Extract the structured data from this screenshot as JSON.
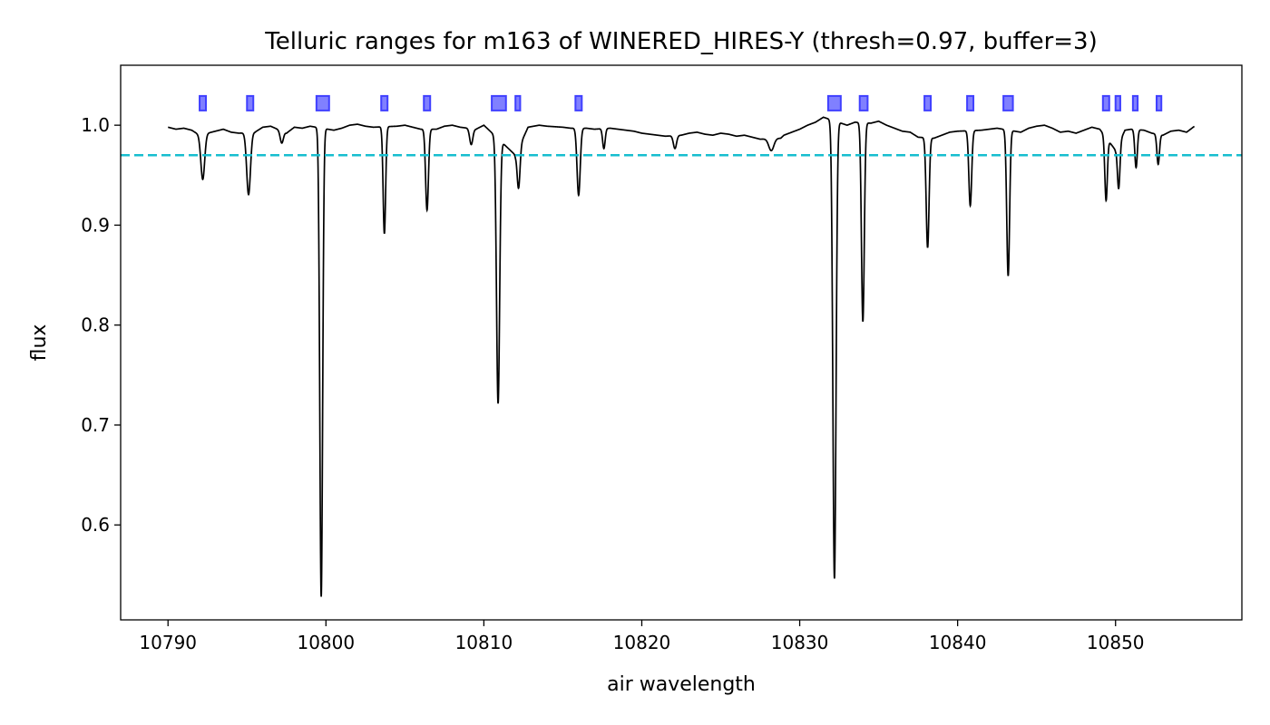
{
  "chart_data": {
    "type": "line",
    "title": "Telluric ranges for m163 of WINERED_HIRES-Y (thresh=0.97, buffer=3)",
    "xlabel": "air wavelength",
    "ylabel": "flux",
    "xlim": [
      10787,
      10858
    ],
    "ylim": [
      0.505,
      1.06
    ],
    "xticks": [
      10790,
      10800,
      10810,
      10820,
      10830,
      10840,
      10850
    ],
    "yticks": [
      0.6,
      0.7,
      0.8,
      0.9,
      1.0
    ],
    "ytick_labels": [
      "0.6",
      "0.7",
      "0.8",
      "0.9",
      "1.0"
    ],
    "grid": false,
    "threshold": 0.97,
    "continuum": [
      [
        10790.0,
        0.998
      ],
      [
        10790.5,
        0.996
      ],
      [
        10791.0,
        0.997
      ],
      [
        10791.5,
        0.995
      ],
      [
        10792.0,
        0.99
      ],
      [
        10793.0,
        0.994
      ],
      [
        10793.5,
        0.996
      ],
      [
        10794.0,
        0.993
      ],
      [
        10794.5,
        0.992
      ],
      [
        10795.5,
        0.993
      ],
      [
        10796.0,
        0.998
      ],
      [
        10796.5,
        0.999
      ],
      [
        10797.5,
        0.992
      ],
      [
        10798.0,
        0.998
      ],
      [
        10798.5,
        0.997
      ],
      [
        10799.0,
        0.999
      ],
      [
        10800.5,
        0.995
      ],
      [
        10801.0,
        0.997
      ],
      [
        10801.5,
        1.0
      ],
      [
        10802.0,
        1.001
      ],
      [
        10802.5,
        0.999
      ],
      [
        10803.0,
        0.998
      ],
      [
        10804.5,
        0.999
      ],
      [
        10805.0,
        1.0
      ],
      [
        10805.5,
        0.998
      ],
      [
        10806.0,
        0.996
      ],
      [
        10807.0,
        0.996
      ],
      [
        10807.5,
        0.999
      ],
      [
        10808.0,
        1.0
      ],
      [
        10808.5,
        0.998
      ],
      [
        10809.5,
        0.996
      ],
      [
        10810.0,
        1.0
      ],
      [
        10812.0,
        0.97
      ],
      [
        10812.8,
        0.998
      ],
      [
        10813.5,
        1.0
      ],
      [
        10814.0,
        0.999
      ],
      [
        10815.0,
        0.998
      ],
      [
        10815.5,
        0.997
      ],
      [
        10816.5,
        0.997
      ],
      [
        10817.0,
        0.996
      ],
      [
        10818.0,
        0.997
      ],
      [
        10818.5,
        0.996
      ],
      [
        10819.0,
        0.995
      ],
      [
        10819.5,
        0.994
      ],
      [
        10820.0,
        0.992
      ],
      [
        10821.0,
        0.99
      ],
      [
        10821.5,
        0.989
      ],
      [
        10822.5,
        0.99
      ],
      [
        10823.0,
        0.992
      ],
      [
        10823.5,
        0.993
      ],
      [
        10824.0,
        0.991
      ],
      [
        10824.5,
        0.99
      ],
      [
        10825.0,
        0.992
      ],
      [
        10825.5,
        0.991
      ],
      [
        10826.0,
        0.989
      ],
      [
        10826.5,
        0.99
      ],
      [
        10827.0,
        0.988
      ],
      [
        10827.5,
        0.986
      ],
      [
        10828.8,
        0.987
      ],
      [
        10829.0,
        0.99
      ],
      [
        10829.5,
        0.993
      ],
      [
        10830.0,
        0.996
      ],
      [
        10830.5,
        1.0
      ],
      [
        10831.0,
        1.003
      ],
      [
        10831.5,
        1.008
      ],
      [
        10833.0,
        1.0
      ],
      [
        10833.5,
        1.003
      ],
      [
        10834.5,
        1.002
      ],
      [
        10835.0,
        1.004
      ],
      [
        10835.5,
        1.0
      ],
      [
        10836.0,
        0.997
      ],
      [
        10836.5,
        0.994
      ],
      [
        10837.0,
        0.993
      ],
      [
        10837.5,
        0.988
      ],
      [
        10838.5,
        0.987
      ],
      [
        10839.0,
        0.99
      ],
      [
        10839.5,
        0.993
      ],
      [
        10840.0,
        0.994
      ],
      [
        10841.5,
        0.995
      ],
      [
        10842.0,
        0.996
      ],
      [
        10842.5,
        0.997
      ],
      [
        10844.0,
        0.993
      ],
      [
        10844.5,
        0.997
      ],
      [
        10845.0,
        0.999
      ],
      [
        10845.5,
        1.0
      ],
      [
        10846.0,
        0.997
      ],
      [
        10846.5,
        0.993
      ],
      [
        10847.0,
        0.994
      ],
      [
        10847.5,
        0.992
      ],
      [
        10848.0,
        0.995
      ],
      [
        10848.5,
        0.998
      ],
      [
        10849.0,
        0.996
      ],
      [
        10850.0,
        0.975
      ],
      [
        10850.6,
        0.995
      ],
      [
        10851.0,
        0.996
      ],
      [
        10851.8,
        0.995
      ],
      [
        10852.3,
        0.992
      ],
      [
        10853.0,
        0.99
      ],
      [
        10853.5,
        0.994
      ],
      [
        10854.0,
        0.995
      ],
      [
        10854.5,
        0.993
      ],
      [
        10855.0,
        0.999
      ]
    ],
    "absorption_lines": [
      {
        "center": 10792.2,
        "depth": 0.045,
        "width": 0.12
      },
      {
        "center": 10795.1,
        "depth": 0.062,
        "width": 0.12
      },
      {
        "center": 10797.2,
        "depth": 0.012,
        "width": 0.1
      },
      {
        "center": 10799.7,
        "depth": 0.469,
        "width": 0.09
      },
      {
        "center": 10803.7,
        "depth": 0.107,
        "width": 0.08
      },
      {
        "center": 10806.4,
        "depth": 0.081,
        "width": 0.09
      },
      {
        "center": 10809.2,
        "depth": 0.016,
        "width": 0.1
      },
      {
        "center": 10810.9,
        "depth": 0.265,
        "width": 0.1
      },
      {
        "center": 10812.2,
        "depth": 0.04,
        "width": 0.09
      },
      {
        "center": 10816.0,
        "depth": 0.067,
        "width": 0.1
      },
      {
        "center": 10817.6,
        "depth": 0.02,
        "width": 0.08
      },
      {
        "center": 10822.1,
        "depth": 0.013,
        "width": 0.1
      },
      {
        "center": 10828.2,
        "depth": 0.012,
        "width": 0.16
      },
      {
        "center": 10832.2,
        "depth": 0.458,
        "width": 0.1
      },
      {
        "center": 10834.0,
        "depth": 0.199,
        "width": 0.09
      },
      {
        "center": 10838.1,
        "depth": 0.11,
        "width": 0.09
      },
      {
        "center": 10840.8,
        "depth": 0.075,
        "width": 0.09
      },
      {
        "center": 10843.2,
        "depth": 0.146,
        "width": 0.09
      },
      {
        "center": 10849.4,
        "depth": 0.063,
        "width": 0.08
      },
      {
        "center": 10850.2,
        "depth": 0.045,
        "width": 0.08
      },
      {
        "center": 10851.3,
        "depth": 0.038,
        "width": 0.08
      },
      {
        "center": 10852.7,
        "depth": 0.03,
        "width": 0.08
      }
    ],
    "telluric_ranges": [
      [
        10792.0,
        10792.4
      ],
      [
        10795.0,
        10795.4
      ],
      [
        10799.4,
        10800.2
      ],
      [
        10803.5,
        10803.9
      ],
      [
        10806.2,
        10806.6
      ],
      [
        10810.5,
        10811.4
      ],
      [
        10812.0,
        10812.3
      ],
      [
        10815.8,
        10816.2
      ],
      [
        10831.8,
        10832.6
      ],
      [
        10833.8,
        10834.3
      ],
      [
        10837.9,
        10838.3
      ],
      [
        10840.6,
        10841.0
      ],
      [
        10842.9,
        10843.5
      ],
      [
        10849.2,
        10849.6
      ],
      [
        10850.0,
        10850.3
      ],
      [
        10851.1,
        10851.4
      ],
      [
        10852.6,
        10852.9
      ]
    ],
    "range_marker_level": 1.022,
    "colors": {
      "spectrum": "#000000",
      "threshold": "#17becf",
      "range_fill": "#8080ff",
      "range_edge": "#4040ff"
    }
  }
}
